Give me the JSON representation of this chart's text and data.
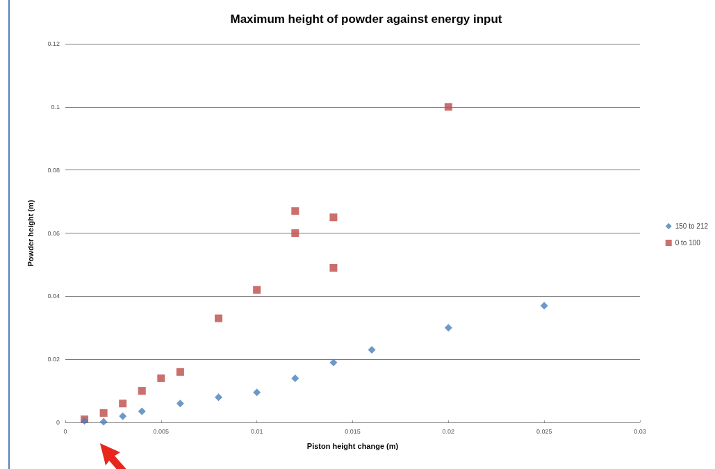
{
  "chart_data": {
    "type": "scatter",
    "title": "Maximum height of powder against energy input",
    "xlabel": "Piston height change (m)",
    "ylabel": "Powder height (m)",
    "xlim": [
      0,
      0.03
    ],
    "xticks": [
      0,
      0.005,
      0.01,
      0.015,
      0.02,
      0.025,
      0.03
    ],
    "ylim": [
      0,
      0.12
    ],
    "yticks": [
      0,
      0.02,
      0.04,
      0.06,
      0.08,
      0.1,
      0.12
    ],
    "grid": "y",
    "legend": "right",
    "series": [
      {
        "name": "150 to 212",
        "color": "#4a7ebb",
        "marker": "diamond",
        "x": [
          0.001,
          0.002,
          0.003,
          0.004,
          0.006,
          0.008,
          0.01,
          0.012,
          0.014,
          0.016,
          0.02,
          0.025
        ],
        "values": [
          0.0005,
          0.0002,
          0.002,
          0.0035,
          0.006,
          0.008,
          0.0095,
          0.014,
          0.019,
          0.023,
          0.03,
          0.037
        ]
      },
      {
        "name": "0 to 100",
        "color": "#be4b48",
        "marker": "square",
        "x": [
          0.001,
          0.002,
          0.003,
          0.004,
          0.005,
          0.006,
          0.008,
          0.01,
          0.012,
          0.012,
          0.014,
          0.014,
          0.02
        ],
        "values": [
          0.001,
          0.003,
          0.006,
          0.01,
          0.014,
          0.016,
          0.033,
          0.042,
          0.067,
          0.06,
          0.065,
          0.049,
          0.1
        ]
      }
    ]
  }
}
